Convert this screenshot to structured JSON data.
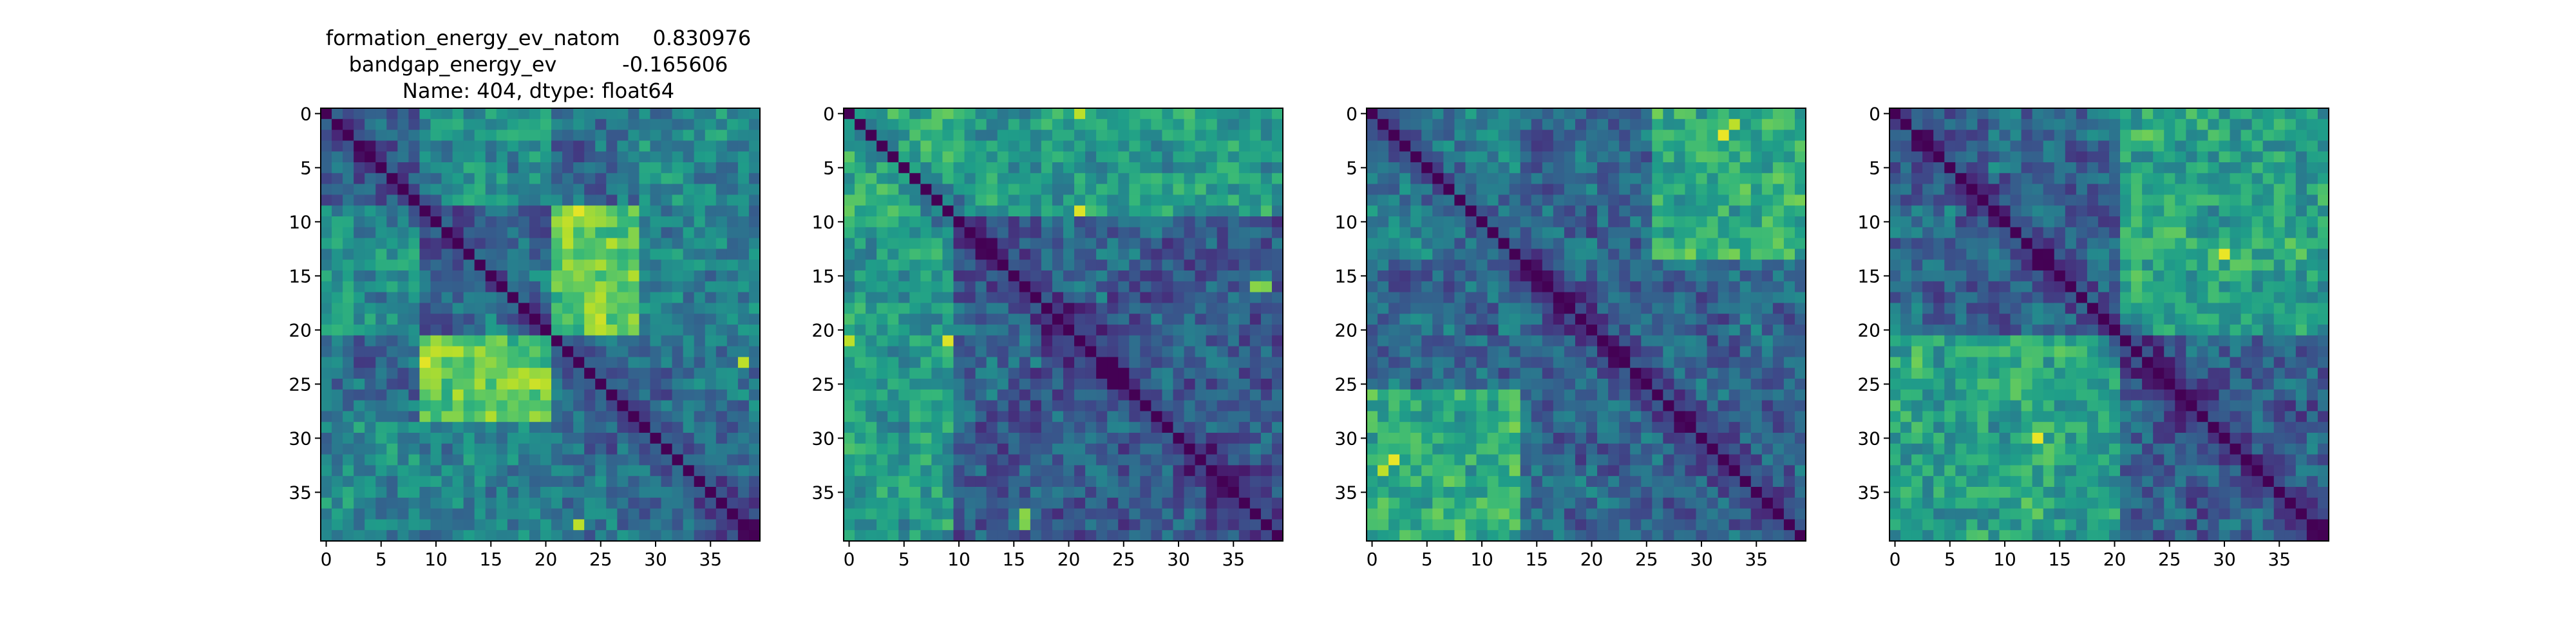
{
  "figure": {
    "title_lines": [
      "formation_energy_ev_natom     0.830976",
      "bandgap_energy_ev          -0.165606",
      "Name: 404, dtype: float64"
    ]
  },
  "colormap": {
    "name": "viridis",
    "stops": [
      "#440154",
      "#482878",
      "#3e4989",
      "#31688e",
      "#26828e",
      "#1f9e89",
      "#35b779",
      "#6ece58",
      "#b5de2b",
      "#fde725"
    ]
  },
  "chart_data": [
    {
      "type": "heatmap",
      "size": 40,
      "xlim": [
        0,
        39
      ],
      "ylim": [
        0,
        39
      ],
      "xticks": [
        0,
        5,
        10,
        15,
        20,
        25,
        30,
        35
      ],
      "yticks": [
        0,
        5,
        10,
        15,
        20,
        25,
        30,
        35
      ],
      "value_range": [
        0,
        1
      ],
      "diagonal_value": 0,
      "base_value": 0.36,
      "blocks": [
        {
          "rows": [
            0,
            8
          ],
          "cols": [
            9,
            20
          ],
          "value": 0.5
        },
        {
          "rows": [
            9,
            20
          ],
          "cols": [
            21,
            29
          ],
          "value": 0.7
        },
        {
          "rows": [
            21,
            28
          ],
          "cols": [
            9,
            20
          ],
          "value": 0.75
        },
        {
          "rows": [
            9,
            20
          ],
          "cols": [
            0,
            8
          ],
          "value": 0.48
        },
        {
          "rows": [
            29,
            39
          ],
          "cols": [
            0,
            20
          ],
          "value": 0.45
        }
      ],
      "hotspots": [
        {
          "row": 9,
          "col": 23,
          "value": 0.96
        },
        {
          "row": 23,
          "col": 9,
          "value": 0.96
        },
        {
          "row": 23,
          "col": 38,
          "value": 0.9
        },
        {
          "row": 38,
          "col": 23,
          "value": 0.9
        }
      ]
    },
    {
      "type": "heatmap",
      "size": 40,
      "xlim": [
        0,
        39
      ],
      "ylim": [
        0,
        39
      ],
      "xticks": [
        0,
        5,
        10,
        15,
        20,
        25,
        30,
        35
      ],
      "yticks": [
        0,
        5,
        10,
        15,
        20,
        25,
        30,
        35
      ],
      "value_range": [
        0,
        1
      ],
      "diagonal_value": 0,
      "base_value": 0.3,
      "blocks": [
        {
          "rows": [
            0,
            9
          ],
          "cols": [
            10,
            39
          ],
          "value": 0.5
        },
        {
          "rows": [
            10,
            39
          ],
          "cols": [
            0,
            9
          ],
          "value": 0.55
        },
        {
          "rows": [
            0,
            9
          ],
          "cols": [
            0,
            9
          ],
          "value": 0.62
        },
        {
          "rows": [
            21,
            39
          ],
          "cols": [
            21,
            39
          ],
          "value": 0.28
        }
      ],
      "hotspots": [
        {
          "row": 9,
          "col": 21,
          "value": 0.95
        },
        {
          "row": 21,
          "col": 9,
          "value": 0.95
        },
        {
          "row": 21,
          "col": 0,
          "value": 0.9
        },
        {
          "row": 16,
          "col": 38,
          "value": 0.8
        },
        {
          "row": 37,
          "col": 16,
          "value": 0.82
        }
      ]
    },
    {
      "type": "heatmap",
      "size": 40,
      "xlim": [
        0,
        39
      ],
      "ylim": [
        0,
        39
      ],
      "xticks": [
        0,
        5,
        10,
        15,
        20,
        25,
        30,
        35
      ],
      "yticks": [
        0,
        5,
        10,
        15,
        20,
        25,
        30,
        35
      ],
      "value_range": [
        0,
        1
      ],
      "diagonal_value": 0,
      "base_value": 0.33,
      "blocks": [
        {
          "rows": [
            0,
            13
          ],
          "cols": [
            26,
            39
          ],
          "value": 0.62
        },
        {
          "rows": [
            26,
            39
          ],
          "cols": [
            0,
            13
          ],
          "value": 0.62
        },
        {
          "rows": [
            0,
            13
          ],
          "cols": [
            0,
            13
          ],
          "value": 0.42
        }
      ],
      "hotspots": [
        {
          "row": 1,
          "col": 33,
          "value": 0.95
        },
        {
          "row": 32,
          "col": 2,
          "value": 0.97
        },
        {
          "row": 33,
          "col": 1,
          "value": 0.9
        }
      ]
    },
    {
      "type": "heatmap",
      "size": 40,
      "xlim": [
        0,
        39
      ],
      "ylim": [
        0,
        39
      ],
      "xticks": [
        0,
        5,
        10,
        15,
        20,
        25,
        30,
        35
      ],
      "yticks": [
        0,
        5,
        10,
        15,
        20,
        25,
        30,
        35
      ],
      "value_range": [
        0,
        1
      ],
      "diagonal_value": 0,
      "base_value": 0.33,
      "blocks": [
        {
          "rows": [
            0,
            20
          ],
          "cols": [
            21,
            39
          ],
          "value": 0.5
        },
        {
          "rows": [
            21,
            39
          ],
          "cols": [
            0,
            20
          ],
          "value": 0.57
        },
        {
          "rows": [
            21,
            39
          ],
          "cols": [
            21,
            39
          ],
          "value": 0.3
        }
      ],
      "hotspots": [
        {
          "row": 13,
          "col": 30,
          "value": 0.95
        },
        {
          "row": 30,
          "col": 13,
          "value": 0.97
        },
        {
          "row": 2,
          "col": 23,
          "value": 0.78
        },
        {
          "row": 22,
          "col": 2,
          "value": 0.75
        }
      ]
    }
  ]
}
